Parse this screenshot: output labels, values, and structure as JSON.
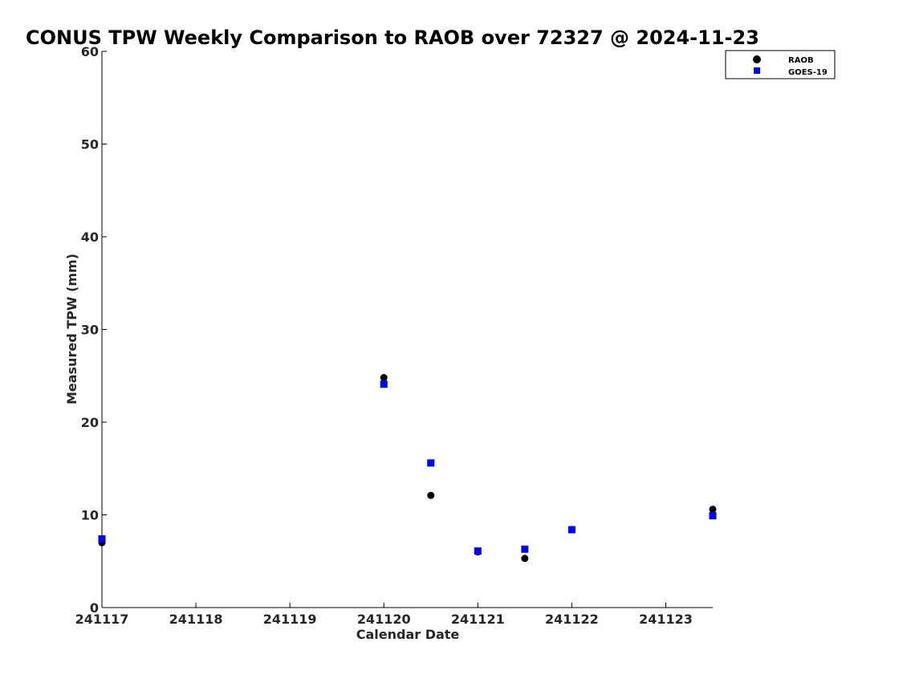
{
  "chart_data": {
    "type": "scatter",
    "title": "CONUS TPW Weekly Comparison to RAOB over 72327 @ 2024-11-23",
    "xlabel": "Calendar Date",
    "ylabel": "Measured TPW (mm)",
    "xlim": [
      0,
      6.5
    ],
    "ylim": [
      0,
      60
    ],
    "grid": false,
    "legend_position": "top-right",
    "x_ticks": [
      {
        "value": 0,
        "label": "241117"
      },
      {
        "value": 1,
        "label": "241118"
      },
      {
        "value": 2,
        "label": "241119"
      },
      {
        "value": 3,
        "label": "241120"
      },
      {
        "value": 4,
        "label": "241121"
      },
      {
        "value": 5,
        "label": "241122"
      },
      {
        "value": 6,
        "label": "241123"
      }
    ],
    "y_ticks": [
      {
        "value": 0,
        "label": "0"
      },
      {
        "value": 10,
        "label": "10"
      },
      {
        "value": 20,
        "label": "20"
      },
      {
        "value": 30,
        "label": "30"
      },
      {
        "value": 40,
        "label": "40"
      },
      {
        "value": 50,
        "label": "50"
      },
      {
        "value": 60,
        "label": "60"
      }
    ],
    "series": [
      {
        "name": "RAOB",
        "marker": "circle",
        "color": "#000000",
        "points": [
          {
            "x": 0,
            "y": 7.0
          },
          {
            "x": 3,
            "y": 24.8
          },
          {
            "x": 3.5,
            "y": 12.1
          },
          {
            "x": 4,
            "y": 6.0
          },
          {
            "x": 4.5,
            "y": 5.3
          },
          {
            "x": 5,
            "y": 8.4
          },
          {
            "x": 6.5,
            "y": 10.6
          }
        ]
      },
      {
        "name": "GOES-19",
        "marker": "square",
        "color": "#0000ff",
        "points": [
          {
            "x": 0,
            "y": 7.4
          },
          {
            "x": 3,
            "y": 24.1
          },
          {
            "x": 3.5,
            "y": 15.6
          },
          {
            "x": 4,
            "y": 6.1
          },
          {
            "x": 4.5,
            "y": 6.3
          },
          {
            "x": 5,
            "y": 8.4
          },
          {
            "x": 6.5,
            "y": 9.9
          }
        ]
      }
    ]
  }
}
